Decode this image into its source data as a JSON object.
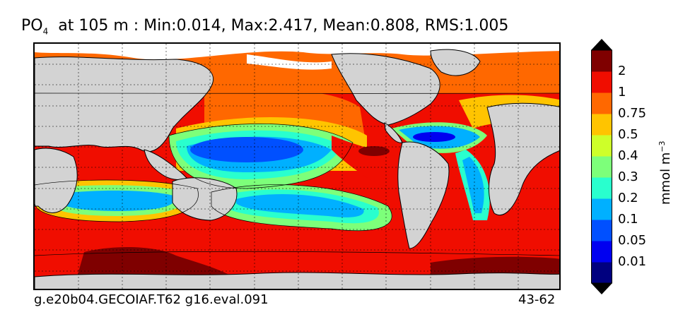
{
  "title": {
    "species": "PO",
    "species_sub": "4",
    "rest": "at 105 m : Min:0.014, Max:2.417, Mean:0.808, RMS:1.005"
  },
  "footer": {
    "left": "g.e20b04.GECOIAF.T62 g16.eval.091",
    "right": "43-62"
  },
  "colorbar": {
    "units_base": "mmol m",
    "units_exp": "−3",
    "levels": [
      "0.01",
      "0.05",
      "0.1",
      "0.2",
      "0.3",
      "0.4",
      "0.5",
      "0.75",
      "1",
      "2"
    ],
    "colors": [
      "#00007f",
      "#0000f0",
      "#0050ff",
      "#00b0ff",
      "#29ffce",
      "#7dff7a",
      "#ceff29",
      "#ffc400",
      "#ff6800",
      "#f00d00",
      "#7f0000"
    ]
  },
  "map": {
    "land_color": "#d3d3d3",
    "sea_ice_color": "#ffffff",
    "gridlines": "dotted"
  }
}
